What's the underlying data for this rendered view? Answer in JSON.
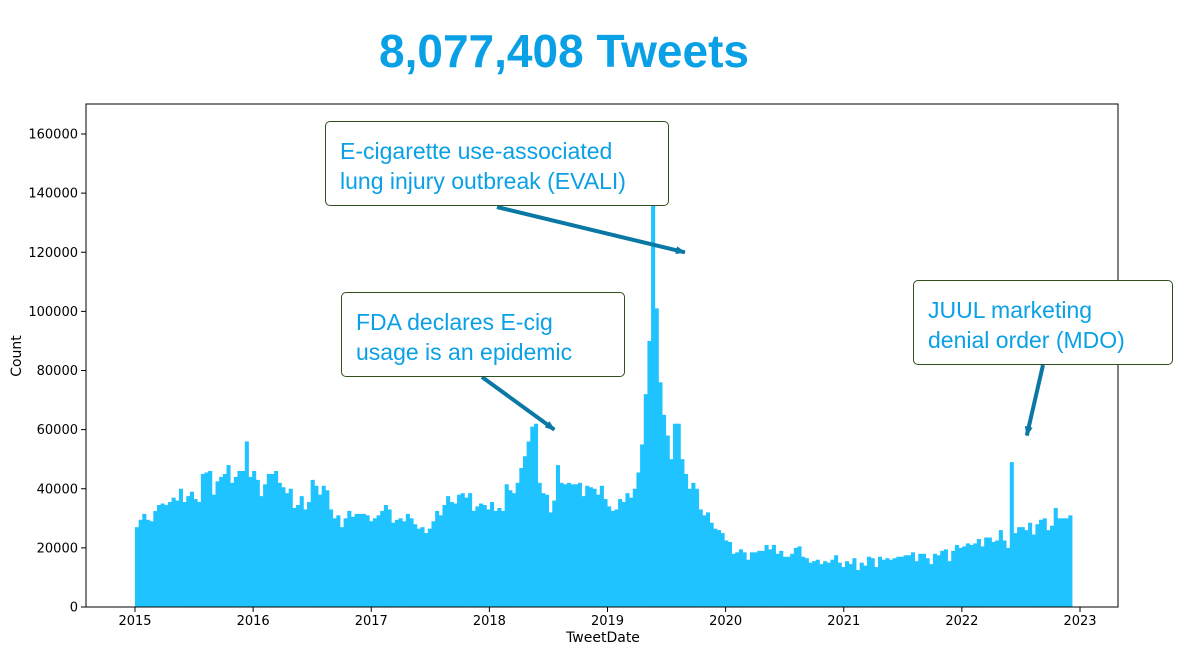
{
  "title": "8,077,408 Tweets",
  "colors": {
    "title": "#0aa0e6",
    "bars": "#1ec3ff",
    "arrow": "#0a78a5",
    "annotation_text": "#0aa0e6",
    "annotation_border": "#2f4f1f"
  },
  "chart_data": {
    "type": "bar",
    "title": "8,077,408 Tweets",
    "xlabel": "TweetDate",
    "ylabel": "Count",
    "xlim": [
      2014.6,
      2023.3
    ],
    "ylim": [
      0,
      170000
    ],
    "xticks": [
      "2015",
      "2016",
      "2017",
      "2018",
      "2019",
      "2020",
      "2021",
      "2022",
      "2023"
    ],
    "yticks": [
      "0",
      "20000",
      "40000",
      "60000",
      "80000",
      "100000",
      "120000",
      "140000",
      "160000"
    ],
    "grid": false,
    "bins": {
      "start": 2015.0,
      "bin_width_years": 0.0385,
      "values": [
        27000,
        29500,
        31500,
        29500,
        29000,
        32500,
        34500,
        35000,
        34500,
        35500,
        37000,
        36000,
        40000,
        35500,
        37500,
        39000,
        36500,
        35500,
        45000,
        45500,
        46000,
        38000,
        42500,
        44000,
        45000,
        48000,
        42000,
        44000,
        46000,
        46000,
        56000,
        44000,
        46000,
        43000,
        37500,
        41500,
        45000,
        45000,
        46000,
        42000,
        40500,
        38500,
        40000,
        33500,
        34500,
        37500,
        33000,
        35500,
        43000,
        41000,
        38000,
        41000,
        39500,
        33000,
        30000,
        31000,
        27000,
        30000,
        32500,
        30500,
        31500,
        31500,
        31500,
        31000,
        29000,
        30000,
        31000,
        32500,
        34500,
        33000,
        28500,
        29500,
        30000,
        29000,
        31500,
        30000,
        28000,
        26500,
        27000,
        25000,
        26500,
        29000,
        32500,
        31000,
        34500,
        37500,
        35500,
        35000,
        38000,
        38500,
        37000,
        38500,
        32500,
        34000,
        35000,
        34500,
        33000,
        35500,
        32500,
        33500,
        32500,
        41500,
        39500,
        38500,
        42000,
        47000,
        51000,
        56000,
        61000,
        62000,
        42000,
        38500,
        38000,
        32000,
        36000,
        48000,
        42000,
        41500,
        42000,
        41500,
        41500,
        42000,
        37500,
        41000,
        40500,
        40000,
        38000,
        41000,
        36500,
        34000,
        32500,
        33000,
        36500,
        35500,
        38500,
        37000,
        40000,
        45500,
        55000,
        72000,
        90000,
        161000,
        101000,
        76000,
        65000,
        58000,
        50000,
        62000,
        62000,
        50000,
        45000,
        40000,
        42000,
        40000,
        33000,
        31000,
        32000,
        28500,
        26500,
        26000,
        25000,
        22500,
        22000,
        18000,
        18500,
        19500,
        18500,
        16000,
        18500,
        18500,
        19000,
        19000,
        21000,
        19500,
        21000,
        18000,
        19000,
        17000,
        17000,
        18000,
        20000,
        20500,
        17000,
        16500,
        15000,
        15500,
        16000,
        14500,
        15500,
        15000,
        16000,
        17500,
        15000,
        13500,
        15500,
        14500,
        16500,
        12500,
        15000,
        14000,
        17000,
        16500,
        13500,
        17000,
        16000,
        16500,
        16000,
        16500,
        17000,
        17000,
        17500,
        17500,
        18500,
        15500,
        18000,
        18000,
        16500,
        14500,
        18000,
        17500,
        19000,
        19500,
        15500,
        19000,
        21000,
        20000,
        20500,
        21500,
        21000,
        21500,
        23000,
        20500,
        23500,
        23500,
        22000,
        22500,
        26000,
        22500,
        20000,
        49000,
        25000,
        27000,
        27000,
        26000,
        28500,
        24500,
        28000,
        29500,
        30000,
        26000,
        27500,
        33500,
        30000,
        30000,
        30000,
        31000
      ]
    },
    "annotations": [
      {
        "text_lines": [
          "E-cigarette use-associated",
          "lung injury outbreak (EVALI)"
        ],
        "target": [
          2019.655,
          120000
        ]
      },
      {
        "text_lines": [
          "FDA declares E-cig",
          "usage is an epidemic"
        ],
        "target": [
          2018.55,
          60000
        ]
      },
      {
        "text_lines": [
          "JUUL marketing",
          "denial order (MDO)"
        ],
        "target": [
          2022.55,
          58000
        ]
      }
    ]
  }
}
